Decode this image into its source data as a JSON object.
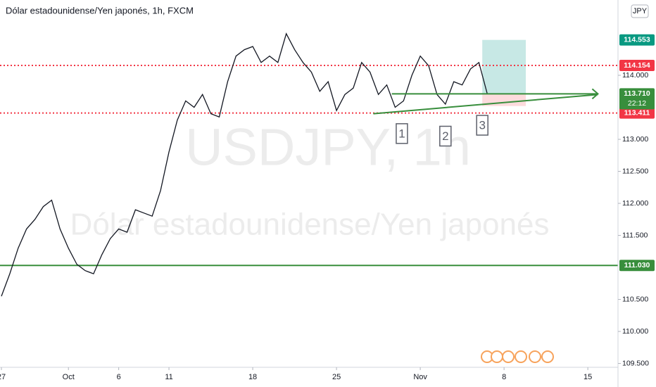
{
  "chart_data": {
    "type": "line",
    "title": "Dólar estadounidense/Yen japonés, 1h, FXCM",
    "watermark": "USDJPY, 1h",
    "watermark_subtitle": "Dólar estadounidense/Yen japonés",
    "currency": "JPY",
    "xlim": [
      0,
      36.8
    ],
    "ylim": [
      109.44,
      115.176
    ],
    "xticks": [
      {
        "value": 0,
        "label": "27"
      },
      {
        "value": 4,
        "label": "Oct"
      },
      {
        "value": 7,
        "label": "6"
      },
      {
        "value": 10,
        "label": "11"
      },
      {
        "value": 15,
        "label": "18"
      },
      {
        "value": 20,
        "label": "25"
      },
      {
        "value": 25,
        "label": "Nov"
      },
      {
        "value": 30,
        "label": "8"
      },
      {
        "value": 35,
        "label": "15"
      }
    ],
    "yticks": [
      {
        "value": 109.5,
        "label": "109.500"
      },
      {
        "value": 110,
        "label": "110.000"
      },
      {
        "value": 110.5,
        "label": "110.500"
      },
      {
        "value": 111.5,
        "label": "111.500"
      },
      {
        "value": 112,
        "label": "112.000"
      },
      {
        "value": 112.5,
        "label": "112.500"
      },
      {
        "value": 113,
        "label": "113.000"
      },
      {
        "value": 114,
        "label": "114.000"
      }
    ],
    "series": [
      {
        "name": "USDJPY",
        "color": "#131722",
        "x": [
          0,
          0.5,
          1,
          1.5,
          2,
          2.5,
          3,
          3.5,
          4,
          4.5,
          5,
          5.5,
          6,
          6.5,
          7,
          7.5,
          8,
          8.5,
          9,
          9.5,
          10,
          10.5,
          11,
          11.5,
          12,
          12.5,
          13,
          13.5,
          14,
          14.5,
          15,
          15.5,
          16,
          16.5,
          17,
          17.5,
          18,
          18.5,
          19,
          19.5,
          20,
          20.5,
          21,
          21.5,
          22,
          22.5,
          23,
          23.5,
          24,
          24.5,
          25,
          25.5,
          26,
          26.5,
          27,
          27.5,
          28,
          28.5,
          29
        ],
        "values": [
          110.55,
          110.9,
          111.3,
          111.6,
          111.75,
          111.95,
          112.05,
          111.6,
          111.3,
          111.05,
          110.95,
          110.9,
          111.2,
          111.45,
          111.6,
          111.55,
          111.9,
          111.85,
          111.8,
          112.2,
          112.8,
          113.3,
          113.6,
          113.5,
          113.7,
          113.4,
          113.35,
          113.9,
          114.3,
          114.4,
          114.45,
          114.2,
          114.3,
          114.2,
          114.65,
          114.4,
          114.2,
          114.05,
          113.75,
          113.9,
          113.45,
          113.7,
          113.8,
          114.2,
          114.05,
          113.7,
          113.85,
          113.5,
          113.6,
          114.0,
          114.3,
          114.15,
          113.7,
          113.55,
          113.9,
          113.85,
          114.1,
          114.2,
          113.71
        ]
      }
    ],
    "levels": [
      {
        "value": 114.154,
        "label": "114.154",
        "color": "#f23645",
        "style": "dotted"
      },
      {
        "value": 113.411,
        "label": "113.411",
        "color": "#f23645",
        "style": "dotted"
      },
      {
        "value": 111.03,
        "label": "111.030",
        "color": "#388e3c",
        "style": "solid"
      }
    ],
    "current": {
      "value": 113.71,
      "label": "113.710",
      "countdown": "22:12",
      "color": "#388e3c",
      "x_start": 23.3,
      "x_end": 35.6
    },
    "trendline": {
      "x": [
        22.2,
        35.6
      ],
      "values": [
        113.4,
        113.7
      ],
      "color": "#388e3c"
    },
    "position": {
      "x_start": 28.7,
      "x_end": 31.3,
      "target": 114.553,
      "target_label": "114.553",
      "entry": 113.71,
      "stop": 113.52
    },
    "annotations": [
      {
        "label": "1",
        "x": 23.9,
        "y": 113.09
      },
      {
        "label": "2",
        "x": 26.5,
        "y": 113.05
      },
      {
        "label": "3",
        "x": 28.7,
        "y": 113.22
      }
    ]
  }
}
